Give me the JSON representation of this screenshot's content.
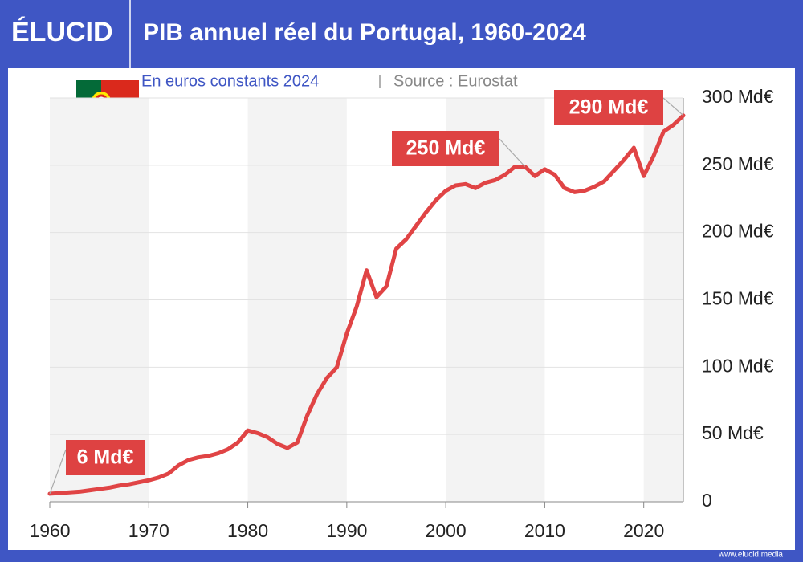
{
  "brand": "ÉLUCID",
  "footer": "www.elucid.media",
  "chart_data": {
    "type": "line",
    "title": "PIB annuel réel du Portugal, 1960-2024",
    "subtitle": "En euros constants 2024",
    "source": "Source : Eurostat",
    "x": [
      1960,
      1961,
      1962,
      1963,
      1964,
      1965,
      1966,
      1967,
      1968,
      1969,
      1970,
      1971,
      1972,
      1973,
      1974,
      1975,
      1976,
      1977,
      1978,
      1979,
      1980,
      1981,
      1982,
      1983,
      1984,
      1985,
      1986,
      1987,
      1988,
      1989,
      1990,
      1991,
      1992,
      1993,
      1994,
      1995,
      1996,
      1997,
      1998,
      1999,
      2000,
      2001,
      2002,
      2003,
      2004,
      2005,
      2006,
      2007,
      2008,
      2009,
      2010,
      2011,
      2012,
      2013,
      2014,
      2015,
      2016,
      2017,
      2018,
      2019,
      2020,
      2021,
      2022,
      2023,
      2024
    ],
    "values": [
      6,
      6.5,
      7,
      7.5,
      8.5,
      9.5,
      10.5,
      12,
      13,
      14.5,
      16,
      18,
      21,
      27,
      31,
      33,
      34,
      36,
      39,
      44,
      53,
      51,
      48,
      43,
      40,
      44,
      64,
      80,
      92,
      100,
      125,
      145,
      172,
      152,
      160,
      188,
      195,
      205,
      215,
      224,
      231,
      235,
      236,
      233,
      237,
      239,
      243,
      249,
      249,
      242,
      247,
      243,
      233,
      230,
      231,
      234,
      238,
      246,
      254,
      263,
      242,
      257,
      275,
      280,
      287
    ],
    "color": "#e04445",
    "xlim": [
      1960,
      2024
    ],
    "xticks": [
      1960,
      1970,
      1980,
      1990,
      2000,
      2010,
      2020
    ],
    "ylim": [
      0,
      300
    ],
    "yticks": [
      0,
      {
        "value": 50,
        "label": "50 Md€"
      },
      {
        "value": 100,
        "label": "100 Md€"
      },
      {
        "value": 150,
        "label": "150 Md€"
      },
      {
        "value": 200,
        "label": "200 Md€"
      },
      {
        "value": 250,
        "label": "250 Md€"
      },
      {
        "value": 300,
        "label": "300 Md€"
      }
    ],
    "grid": true,
    "annotations": [
      {
        "x": 1960,
        "label": "6 Md€"
      },
      {
        "x": 2008,
        "label": "250 Md€"
      },
      {
        "x": 2024,
        "label": "290 Md€"
      }
    ]
  }
}
